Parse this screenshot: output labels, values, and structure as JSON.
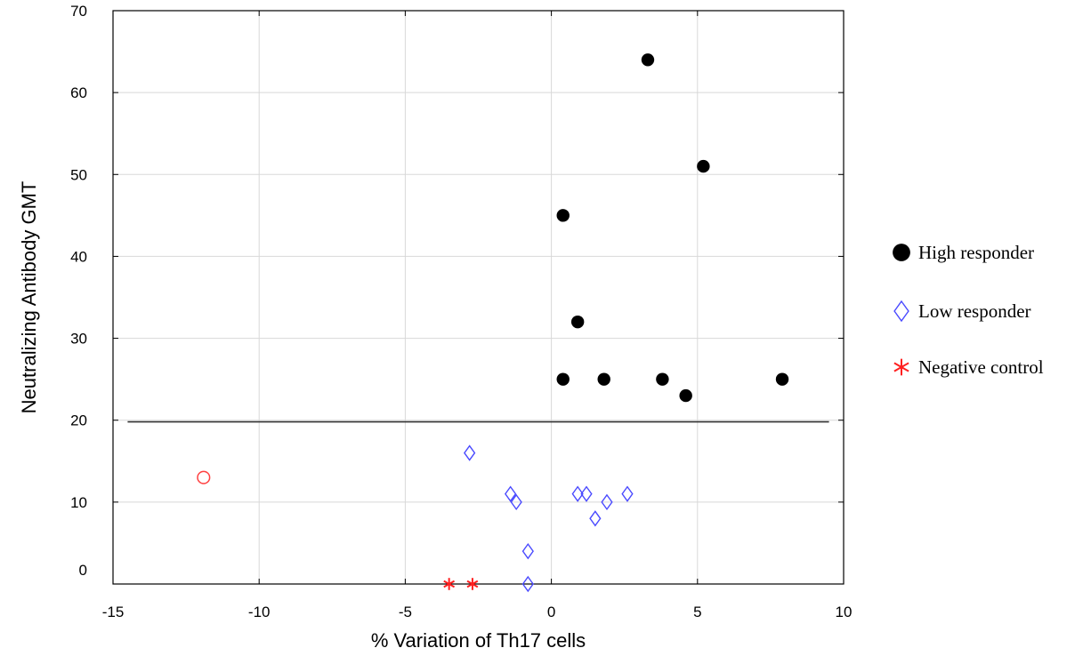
{
  "chart_data": {
    "type": "scatter",
    "title": "",
    "xlabel": "% Variation of Th17 cells",
    "ylabel": "Neutralizing Antibody GMT",
    "xlim": [
      -15,
      10
    ],
    "ylim": [
      0,
      70
    ],
    "xticks": [
      -15,
      -10,
      -5,
      0,
      5,
      10
    ],
    "yticks": [
      0,
      10,
      20,
      30,
      40,
      50,
      60,
      70
    ],
    "grid": true,
    "legend_position": "right",
    "threshold_line": {
      "y": 19.8,
      "x_range": [
        -14.5,
        9.5
      ]
    },
    "series": [
      {
        "name": "High responder",
        "marker": "filled-circle",
        "color": "#000000",
        "points": [
          {
            "x": 3.3,
            "y": 64
          },
          {
            "x": 5.2,
            "y": 51
          },
          {
            "x": 0.4,
            "y": 45
          },
          {
            "x": 0.9,
            "y": 32
          },
          {
            "x": 0.4,
            "y": 25
          },
          {
            "x": 1.8,
            "y": 25
          },
          {
            "x": 3.8,
            "y": 25
          },
          {
            "x": 4.6,
            "y": 23
          },
          {
            "x": 7.9,
            "y": 25
          }
        ]
      },
      {
        "name": "Low responder",
        "marker": "open-diamond",
        "color": "#4a4aff",
        "points": [
          {
            "x": -2.8,
            "y": 16
          },
          {
            "x": -1.4,
            "y": 11
          },
          {
            "x": -1.2,
            "y": 10
          },
          {
            "x": -0.8,
            "y": 4
          },
          {
            "x": -0.8,
            "y": 0
          },
          {
            "x": 0.9,
            "y": 11
          },
          {
            "x": 1.2,
            "y": 11
          },
          {
            "x": 1.9,
            "y": 10
          },
          {
            "x": 1.5,
            "y": 8
          },
          {
            "x": 2.6,
            "y": 11
          }
        ]
      },
      {
        "name": "Negative control",
        "marker": "asterisk",
        "color": "#ff2020",
        "points": [
          {
            "x": -3.5,
            "y": 0
          },
          {
            "x": -2.7,
            "y": 0
          }
        ]
      },
      {
        "name": "",
        "marker": "open-circle",
        "color": "#ff4040",
        "points": [
          {
            "x": -11.9,
            "y": 13
          }
        ]
      }
    ]
  }
}
